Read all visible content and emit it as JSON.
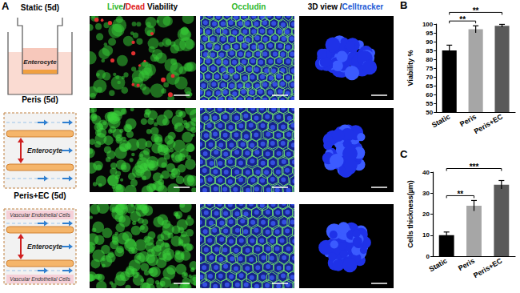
{
  "figure": {
    "panel_label": "A",
    "column_headers": [
      [
        {
          "text": "Live",
          "color": "#2db82d"
        },
        {
          "text": "/",
          "color": "#000000"
        },
        {
          "text": "Dead",
          "color": "#e02020"
        },
        {
          "text": " Viability",
          "color": "#000000"
        }
      ],
      [
        {
          "text": "Occludin",
          "color": "#2db82d"
        }
      ],
      [
        {
          "text": "3D view /",
          "color": "#000000"
        },
        {
          "text": "Celltracker",
          "color": "#1e5bd6"
        }
      ]
    ],
    "rows": [
      {
        "label": "Static (5d)",
        "cell_label": "Enterocyte"
      },
      {
        "label": "Peris (5d)",
        "cell_label": "Enterocyte"
      },
      {
        "label": "Peris+EC (5d)",
        "cell_label": "Enterocyte",
        "vessel_labels": [
          "Vascular Endothelial Cells",
          "Vascular Endothelial Cells"
        ]
      }
    ]
  },
  "chart_data": [
    {
      "panel": "B",
      "type": "bar",
      "ylabel": "Viability %",
      "categories": [
        "Static",
        "Peris",
        "Peris+EC"
      ],
      "values": [
        85,
        97,
        99
      ],
      "errors": [
        3,
        2,
        0.8
      ],
      "colors": [
        "#000000",
        "#a6a6a6",
        "#595959"
      ],
      "ylim": [
        50,
        100
      ],
      "yticks": [
        50,
        55,
        60,
        65,
        70,
        75,
        80,
        85,
        90,
        95,
        100
      ],
      "grid": false,
      "significance": [
        {
          "from": "Static",
          "to": "Peris",
          "label": "**"
        },
        {
          "from": "Static",
          "to": "Peris+EC",
          "label": "**"
        }
      ]
    },
    {
      "panel": "C",
      "type": "bar",
      "ylabel": "Cells thickness(µm)",
      "categories": [
        "Static",
        "Peris",
        "Peris+EC"
      ],
      "values": [
        10,
        24,
        34
      ],
      "errors": [
        1.5,
        2.5,
        2
      ],
      "colors": [
        "#000000",
        "#a6a6a6",
        "#595959"
      ],
      "ylim": [
        0,
        40
      ],
      "yticks": [
        0,
        10,
        20,
        30,
        40
      ],
      "grid": false,
      "significance": [
        {
          "from": "Static",
          "to": "Peris",
          "label": "**"
        },
        {
          "from": "Static",
          "to": "Peris+EC",
          "label": "***"
        }
      ]
    }
  ]
}
